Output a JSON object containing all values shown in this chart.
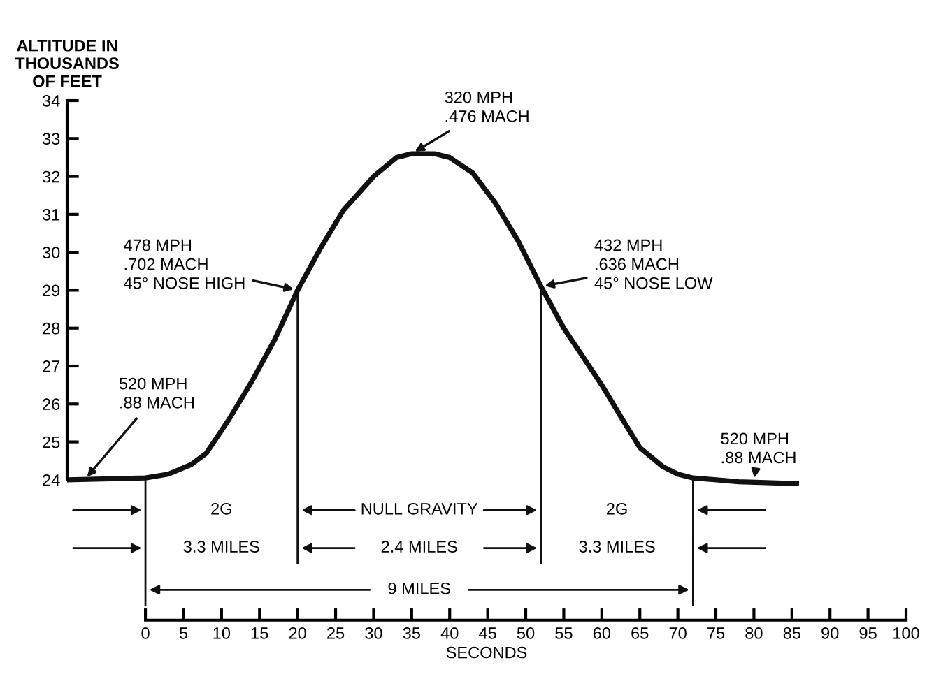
{
  "chart_data": {
    "type": "line",
    "ylabel": "ALTITUDE IN\nTHOUSANDS\nOF FEET",
    "xlabel": "SECONDS",
    "x": [
      -10.2,
      0,
      3,
      6,
      8,
      11,
      14,
      17,
      20,
      23,
      26,
      30,
      33,
      35,
      38,
      40,
      43,
      46,
      49,
      52,
      55,
      57,
      60,
      63,
      65,
      68,
      70,
      72,
      78,
      85.6
    ],
    "series": [
      {
        "color": "#111111",
        "values": [
          24.0,
          24.05,
          24.15,
          24.4,
          24.7,
          25.6,
          26.6,
          27.7,
          29.0,
          30.1,
          31.1,
          32.0,
          32.5,
          32.6,
          32.6,
          32.5,
          32.1,
          31.3,
          30.3,
          29.1,
          28.0,
          27.4,
          26.5,
          25.5,
          24.85,
          24.35,
          24.15,
          24.05,
          23.95,
          23.9
        ]
      }
    ],
    "xlim": [
      -10.3,
      100
    ],
    "ylim": [
      20.3,
      34
    ],
    "xticks": [
      0,
      5,
      10,
      15,
      20,
      25,
      30,
      35,
      40,
      45,
      50,
      55,
      60,
      65,
      70,
      75,
      80,
      85,
      90,
      95,
      100
    ],
    "yticks": [
      24,
      25,
      26,
      27,
      28,
      29,
      30,
      31,
      32,
      33,
      34
    ],
    "ref_lines": [
      {
        "axis": "x",
        "value": 0
      },
      {
        "axis": "x",
        "value": 20
      },
      {
        "axis": "x",
        "value": 52
      },
      {
        "axis": "x",
        "value": 72
      }
    ],
    "annotations": [
      {
        "text": "520 MPH\n.88 MACH",
        "x": -8,
        "y": 24
      },
      {
        "text": "478 MPH\n.702 MACH\n45° NOSE HIGH",
        "x": 20,
        "y": 29
      },
      {
        "text": "320 MPH\n.476 MACH",
        "x": 35,
        "y": 32.6
      },
      {
        "text": "432 MPH\n.636 MACH\n45° NOSE LOW",
        "x": 52,
        "y": 29.1
      },
      {
        "text": "520 MPH\n.88 MACH",
        "x": 80,
        "y": 23.95
      },
      "2G",
      "NULL GRAVITY",
      "2G",
      "3.3 MILES",
      "2.4 MILES",
      "3.3 MILES",
      "9 MILES"
    ],
    "grid": false,
    "marker": "none",
    "line_style": "solid"
  }
}
